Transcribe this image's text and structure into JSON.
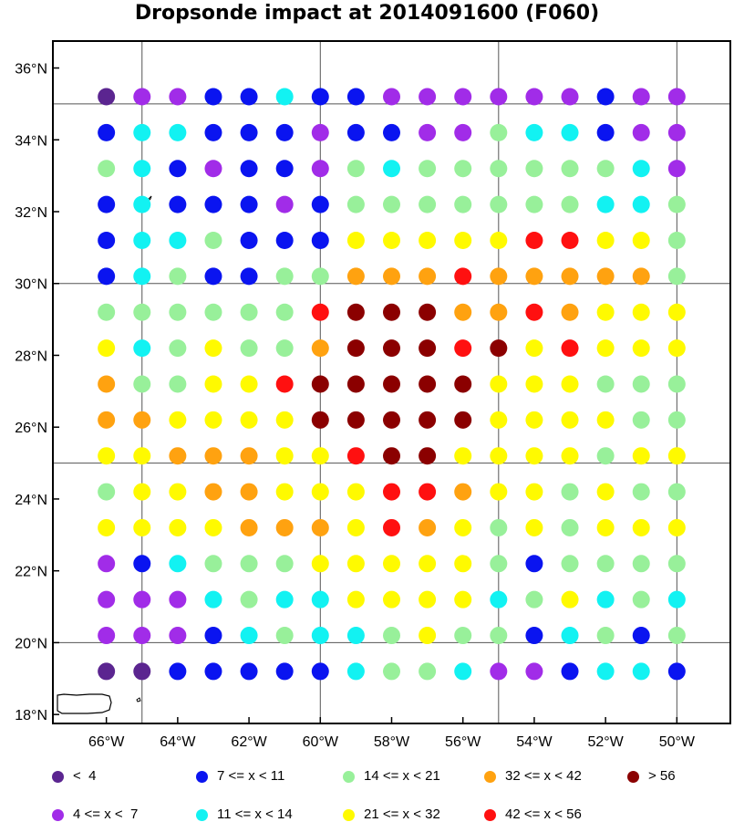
{
  "title": "Dropsonde impact at 2014091600 (F060)",
  "map": {
    "lon_range": [
      -67.5,
      -48.5
    ],
    "lat_range": [
      17.75,
      36.75
    ],
    "lon_ticks": [
      "66°W",
      "64°W",
      "62°W",
      "60°W",
      "58°W",
      "56°W",
      "54°W",
      "52°W",
      "50°W"
    ],
    "lon_tick_values": [
      -66,
      -64,
      -62,
      -60,
      -58,
      -56,
      -54,
      -52,
      -50
    ],
    "lat_ticks": [
      "18°N",
      "20°N",
      "22°N",
      "24°N",
      "26°N",
      "28°N",
      "30°N",
      "32°N",
      "34°N",
      "36°N"
    ],
    "lat_tick_values": [
      18,
      20,
      22,
      24,
      26,
      28,
      30,
      32,
      34,
      36
    ],
    "grid_lons": [
      -65,
      -60,
      -55,
      -50
    ],
    "grid_lats": [
      20,
      25,
      30,
      35
    ]
  },
  "colors": {
    "0": "#5b2590",
    "1": "#a12ce8",
    "2": "#0a14f0",
    "3": "#12f2f2",
    "4": "#98f09a",
    "5": "#fffa00",
    "6": "#ffa210",
    "7": "#ff1010",
    "8": "#8b0000"
  },
  "legend": [
    {
      "label": "<  4",
      "cls": 0
    },
    {
      "label": "4 <= x <  7",
      "cls": 1
    },
    {
      "label": "7 <= x < 11",
      "cls": 2
    },
    {
      "label": "11 <= x < 14",
      "cls": 3
    },
    {
      "label": "14 <= x < 21",
      "cls": 4
    },
    {
      "label": "21 <= x < 32",
      "cls": 5
    },
    {
      "label": "32 <= x < 42",
      "cls": 6
    },
    {
      "label": "42 <= x < 56",
      "cls": 7
    },
    {
      "label": "> 56",
      "cls": 8
    }
  ],
  "chart_data": {
    "type": "scatter",
    "title": "Dropsonde impact at 2014091600 (F060)",
    "lons": [
      -66,
      -65,
      -64,
      -63,
      -62,
      -61,
      -60,
      -59,
      -58,
      -57,
      -56,
      -55,
      -54,
      -53,
      -52,
      -51,
      -50
    ],
    "lats": [
      35.2,
      34.2,
      33.2,
      32.2,
      31.2,
      30.2,
      29.2,
      28.2,
      27.2,
      26.2,
      25.2,
      24.2,
      23.2,
      22.2,
      21.2,
      20.2,
      19.2
    ],
    "rows_color_class": [
      "01122322111111211",
      "23322212211433211",
      "43212214344444431",
      "23222124444444334",
      "23342225555577554",
      "23422446667666664",
      "44444478886676555",
      "53454468887857555",
      "64455788888555444",
      "66555588888555544",
      "55666557885555455",
      "45566555776554544",
      "55556665765454555",
      "12344455555424444",
      "11134335555345343",
      "11123433454423424",
      "00222223443112332"
    ]
  }
}
